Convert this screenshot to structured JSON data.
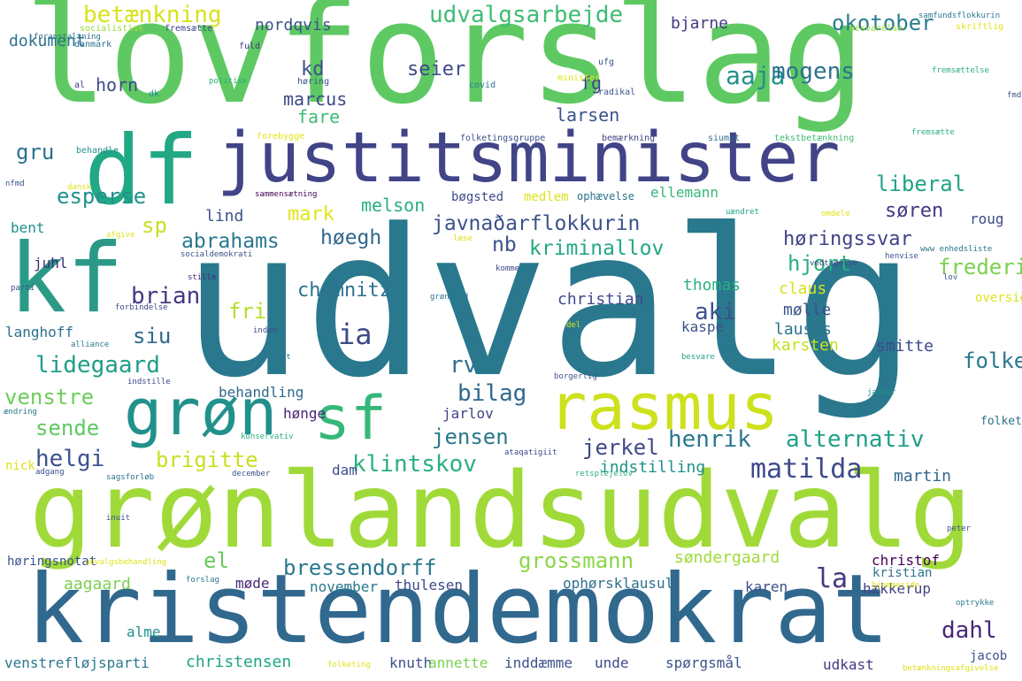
{
  "words": [
    {
      "text": "lovforslag",
      "color": "#5ec962"
    },
    {
      "text": "udvalg",
      "color": "#2a788e"
    },
    {
      "text": "grønlandsudvalg",
      "color": "#a0da39"
    },
    {
      "text": "kristendemokrat",
      "color": "#31688e"
    },
    {
      "text": "justitsminister",
      "color": "#414487"
    },
    {
      "text": "df",
      "color": "#22a884"
    },
    {
      "text": "kf",
      "color": "#2a9a87"
    },
    {
      "text": "grøn",
      "color": "#21918c"
    },
    {
      "text": "sf",
      "color": "#35b779"
    },
    {
      "text": "rasmus",
      "color": "#cde11d"
    },
    {
      "text": "javnaðarflokkurin",
      "color": "#3b528b"
    },
    {
      "text": "abrahams",
      "color": "#2a788e"
    },
    {
      "text": "høegh",
      "color": "#31688e"
    },
    {
      "text": "nb",
      "color": "#3b528b"
    },
    {
      "text": "kriminallov",
      "color": "#22a884"
    },
    {
      "text": "høringssvar",
      "color": "#414487"
    },
    {
      "text": "brian",
      "color": "#443983"
    },
    {
      "text": "fri",
      "color": "#b5de2b"
    },
    {
      "text": "siu",
      "color": "#31688e"
    },
    {
      "text": "ia",
      "color": "#3e4989"
    },
    {
      "text": "aki",
      "color": "#3b528b"
    },
    {
      "text": "lidegaard",
      "color": "#1f9e89"
    },
    {
      "text": "venstre",
      "color": "#6ccd5a"
    },
    {
      "text": "bilag",
      "color": "#31688e"
    },
    {
      "text": "alternativ",
      "color": "#1fa088"
    },
    {
      "text": "sende",
      "color": "#5ec962"
    },
    {
      "text": "jensen",
      "color": "#2a788e"
    },
    {
      "text": "jerkel",
      "color": "#3e4989"
    },
    {
      "text": "henrik",
      "color": "#2a788e"
    },
    {
      "text": "helgi",
      "color": "#3b528b"
    },
    {
      "text": "brigitte",
      "color": "#c8e020"
    },
    {
      "text": "klintskov",
      "color": "#2ab07f"
    },
    {
      "text": "matilda",
      "color": "#3e4989"
    },
    {
      "text": "el",
      "color": "#65cb5e"
    },
    {
      "text": "bressendorff",
      "color": "#2a788e"
    },
    {
      "text": "grossmann",
      "color": "#8bd646"
    },
    {
      "text": "la",
      "color": "#453781"
    },
    {
      "text": "dahl",
      "color": "#482677"
    },
    {
      "text": "liberal",
      "color": "#20a486"
    },
    {
      "text": "søren",
      "color": "#443983"
    },
    {
      "text": "mark",
      "color": "#e2e418"
    },
    {
      "text": "sp",
      "color": "#c8e020"
    },
    {
      "text": "esperse",
      "color": "#21918c"
    },
    {
      "text": "gru",
      "color": "#2c728e"
    },
    {
      "text": "betænkning",
      "color": "#d8e219"
    },
    {
      "text": "udvalgsarbejde",
      "color": "#3fbc73"
    },
    {
      "text": "okotober",
      "color": "#287d8e"
    },
    {
      "text": "aaja",
      "color": "#21918c"
    },
    {
      "text": "mogens",
      "color": "#2c728e"
    },
    {
      "text": "hjort",
      "color": "#2ab07f"
    },
    {
      "text": "frederiksen",
      "color": "#7ad151"
    },
    {
      "text": "folkeparti",
      "color": "#2a788e"
    },
    {
      "text": "chemnitz",
      "color": "#2c728e"
    },
    {
      "text": "rv",
      "color": "#2c728e"
    },
    {
      "text": "kd",
      "color": "#3b528b"
    },
    {
      "text": "marcus",
      "color": "#3e4989"
    },
    {
      "text": "fare",
      "color": "#3fbc73"
    },
    {
      "text": "larsen",
      "color": "#3b528b"
    },
    {
      "text": "seier",
      "color": "#3e4989"
    },
    {
      "text": "fg",
      "color": "#414487"
    },
    {
      "text": "horn",
      "color": "#3e4989"
    },
    {
      "text": "dokument",
      "color": "#2c728e"
    },
    {
      "text": "bjarne",
      "color": "#443983"
    },
    {
      "text": "nordqvis",
      "color": "#3b528b"
    },
    {
      "text": "melson",
      "color": "#2ab07f"
    },
    {
      "text": "lind",
      "color": "#3b528b"
    },
    {
      "text": "bent",
      "color": "#21918c"
    },
    {
      "text": "juhl",
      "color": "#482878"
    },
    {
      "text": "thomas",
      "color": "#2ab07f"
    },
    {
      "text": "christian",
      "color": "#3e4989"
    },
    {
      "text": "claus",
      "color": "#d8e219"
    },
    {
      "text": "mølle",
      "color": "#3b528b"
    },
    {
      "text": "kaspe",
      "color": "#3b528b"
    },
    {
      "text": "lausts",
      "color": "#2c728e"
    },
    {
      "text": "karsten",
      "color": "#c8e020"
    },
    {
      "text": "smitte",
      "color": "#3e4989"
    },
    {
      "text": "langhoff",
      "color": "#2c728e"
    },
    {
      "text": "behandling",
      "color": "#31688e"
    },
    {
      "text": "hønge",
      "color": "#482677"
    },
    {
      "text": "jarlov",
      "color": "#414487"
    },
    {
      "text": "indstilling",
      "color": "#21918c"
    },
    {
      "text": "dam",
      "color": "#3b528b"
    },
    {
      "text": "martin",
      "color": "#31688e"
    },
    {
      "text": "søndergaard",
      "color": "#a0da39"
    },
    {
      "text": "christof",
      "color": "#440154"
    },
    {
      "text": "kristian",
      "color": "#2c728e"
    },
    {
      "text": "hækkerup",
      "color": "#414487"
    },
    {
      "text": "aagaard",
      "color": "#7ad151"
    },
    {
      "text": "møde",
      "color": "#482878"
    },
    {
      "text": "november",
      "color": "#2a788e"
    },
    {
      "text": "thulesen",
      "color": "#3e4989"
    },
    {
      "text": "ophørsklausul",
      "color": "#2c728e"
    },
    {
      "text": "karen",
      "color": "#3b528b"
    },
    {
      "text": "alme",
      "color": "#21918c"
    },
    {
      "text": "venstrefløjsparti",
      "color": "#2a788e"
    },
    {
      "text": "christensen",
      "color": "#20a486"
    },
    {
      "text": "knuth",
      "color": "#3b528b"
    },
    {
      "text": "annette",
      "color": "#7ad151"
    },
    {
      "text": "inddæmme",
      "color": "#3b528b"
    },
    {
      "text": "unde",
      "color": "#3e4989"
    },
    {
      "text": "spørgsmål",
      "color": "#3b528b"
    },
    {
      "text": "udkast",
      "color": "#443983"
    },
    {
      "text": "jacob",
      "color": "#3b528b"
    },
    {
      "text": "høringsnotat",
      "color": "#3b528b"
    },
    {
      "text": "nick",
      "color": "#dde318"
    },
    {
      "text": "bøgsted",
      "color": "#3e4989"
    },
    {
      "text": "medlem",
      "color": "#dde318"
    },
    {
      "text": "ophævelse",
      "color": "#2c728e"
    },
    {
      "text": "ellemann",
      "color": "#35b779"
    },
    {
      "text": "roug",
      "color": "#3e4989"
    },
    {
      "text": "oversigt",
      "color": "#dde318"
    },
    {
      "text": "folketingsår",
      "color": "#2c728e"
    },
    {
      "text": "socialistisk",
      "color": "#a0da39"
    },
    {
      "text": "fremsætte",
      "color": "#3e4989"
    },
    {
      "text": "besvarelse",
      "color": "#a0da39"
    },
    {
      "text": "skriftlig",
      "color": "#e2e418"
    },
    {
      "text": "foranstaltning",
      "color": "#2c728e"
    },
    {
      "text": "danmark",
      "color": "#2c728e"
    },
    {
      "text": "fuld",
      "color": "#443983"
    },
    {
      "text": "al",
      "color": "#443983"
    },
    {
      "text": "dk",
      "color": "#21918c"
    },
    {
      "text": "høring",
      "color": "#3b528b"
    },
    {
      "text": "covid",
      "color": "#2a788e"
    },
    {
      "text": "ufg",
      "color": "#3b528b"
    },
    {
      "text": "minister",
      "color": "#e2e418"
    },
    {
      "text": "radikal",
      "color": "#3b528b"
    },
    {
      "text": "samfundsflokkurin",
      "color": "#2a788e"
    },
    {
      "text": "politisk",
      "color": "#2ab07f"
    },
    {
      "text": "fremsættelse",
      "color": "#2ab07f"
    },
    {
      "text": "fmd",
      "color": "#3b528b"
    },
    {
      "text": "forebygge",
      "color": "#e2e418"
    },
    {
      "text": "folketingsgruppe",
      "color": "#3b528b"
    },
    {
      "text": "bemærkning",
      "color": "#414487"
    },
    {
      "text": "siumut",
      "color": "#2c728e"
    },
    {
      "text": "tekstbetænkning",
      "color": "#3fbc73"
    },
    {
      "text": "behandle",
      "color": "#21918c"
    },
    {
      "text": "fremsætte",
      "color": "#2ab07f"
    },
    {
      "text": "nfmd",
      "color": "#3b528b"
    },
    {
      "text": "dansk",
      "color": "#dde318"
    },
    {
      "text": "sammensætning",
      "color": "#440154"
    },
    {
      "text": "www enhedsliste",
      "color": "#2a788e"
    },
    {
      "text": "afgive",
      "color": "#dde318"
    },
    {
      "text": "læse",
      "color": "#dde318"
    },
    {
      "text": "uændret",
      "color": "#20a486"
    },
    {
      "text": "omdele",
      "color": "#dde318"
    },
    {
      "text": "socialdemokrati",
      "color": "#3b528b"
    },
    {
      "text": "vedtagelse",
      "color": "#3e4989"
    },
    {
      "text": "henvise",
      "color": "#3b528b"
    },
    {
      "text": "stille",
      "color": "#482878"
    },
    {
      "text": "komme",
      "color": "#3e4989"
    },
    {
      "text": "parti",
      "color": "#3b528b"
    },
    {
      "text": "grønland",
      "color": "#2a788e"
    },
    {
      "text": "lov",
      "color": "#3b528b"
    },
    {
      "text": "forbindelse",
      "color": "#3e4989"
    },
    {
      "text": "inden",
      "color": "#3e4989"
    },
    {
      "text": "alliance",
      "color": "#2a788e"
    },
    {
      "text": "del",
      "color": "#dde318"
    },
    {
      "text": "ft",
      "color": "#2a788e"
    },
    {
      "text": "borgerlig",
      "color": "#3b528b"
    },
    {
      "text": "besvare",
      "color": "#20a486"
    },
    {
      "text": "indstille",
      "color": "#3e4989"
    },
    {
      "text": "ændring",
      "color": "#2a788e"
    },
    {
      "text": "januar",
      "color": "#21918c"
    },
    {
      "text": "konservativ",
      "color": "#2ab07f"
    },
    {
      "text": "ataqatigiit",
      "color": "#3e4989"
    },
    {
      "text": "adgang",
      "color": "#3e4989"
    },
    {
      "text": "sagsforløb",
      "color": "#2c728e"
    },
    {
      "text": "december",
      "color": "#3b528b"
    },
    {
      "text": "retsplejelov",
      "color": "#2ab07f"
    },
    {
      "text": "inuit",
      "color": "#3b528b"
    },
    {
      "text": "peter",
      "color": "#3b528b"
    },
    {
      "text": "udvalgsbehandling",
      "color": "#dde318"
    },
    {
      "text": "forslag",
      "color": "#2a788e"
    },
    {
      "text": "hjemmeside",
      "color": "#dde318"
    },
    {
      "text": "optrykke",
      "color": "#2a788e"
    },
    {
      "text": "folketing",
      "color": "#dde318"
    },
    {
      "text": "betænkningsafgivelse",
      "color": "#dde318"
    }
  ]
}
